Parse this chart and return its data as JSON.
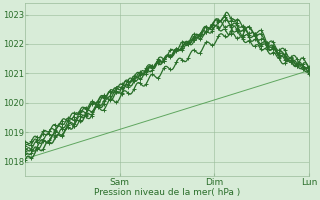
{
  "bg_color": "#d8ecd8",
  "grid_color": "#99bb99",
  "line_color": "#2a6e2a",
  "line_color_light": "#4a9a4a",
  "ylim": [
    1017.5,
    1023.4
  ],
  "yticks": [
    1018,
    1019,
    1020,
    1021,
    1022,
    1023
  ],
  "xlabel": "Pression niveau de la mer( hPa )",
  "day_labels": [
    "Sam",
    "Dim",
    "Lun"
  ],
  "day_ticks": [
    24,
    48,
    72
  ],
  "xlim": [
    0,
    72
  ],
  "figsize": [
    3.2,
    2.0
  ],
  "dpi": 100
}
